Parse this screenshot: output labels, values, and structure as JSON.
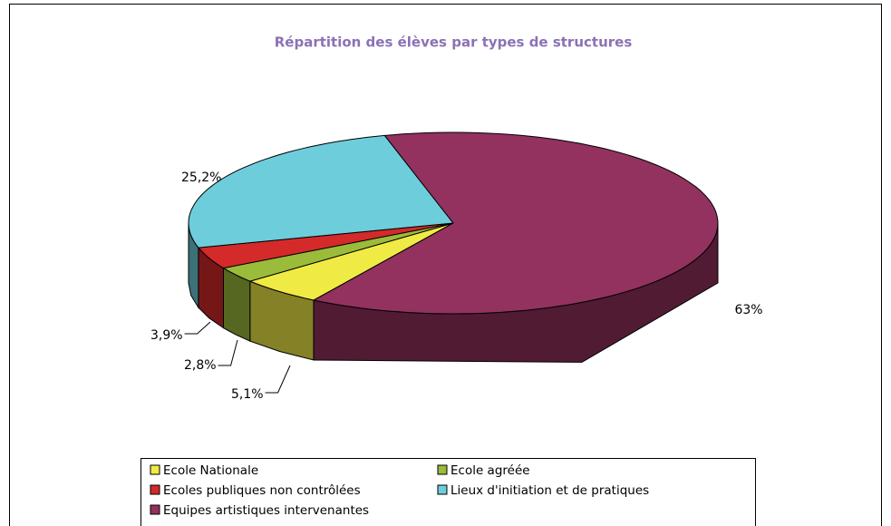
{
  "chart_data": {
    "type": "pie",
    "title": "Répartition des élèves par types de structures",
    "categories": [
      "Ecole Nationale",
      "Ecole agréée",
      "Ecoles publiques non contrôlées",
      "Lieux d'initiation et de pratiques",
      "Equipes artistiques intervenantes"
    ],
    "values": [
      5.1,
      2.8,
      3.9,
      25.2,
      63
    ],
    "value_labels": [
      "5,1%",
      "2,8%",
      "3,9%",
      "25,2%",
      "63%"
    ],
    "colors": [
      "#f0ea45",
      "#9bbb3b",
      "#d42a2a",
      "#6ecddb",
      "#93315f"
    ],
    "legend": "bottom"
  }
}
